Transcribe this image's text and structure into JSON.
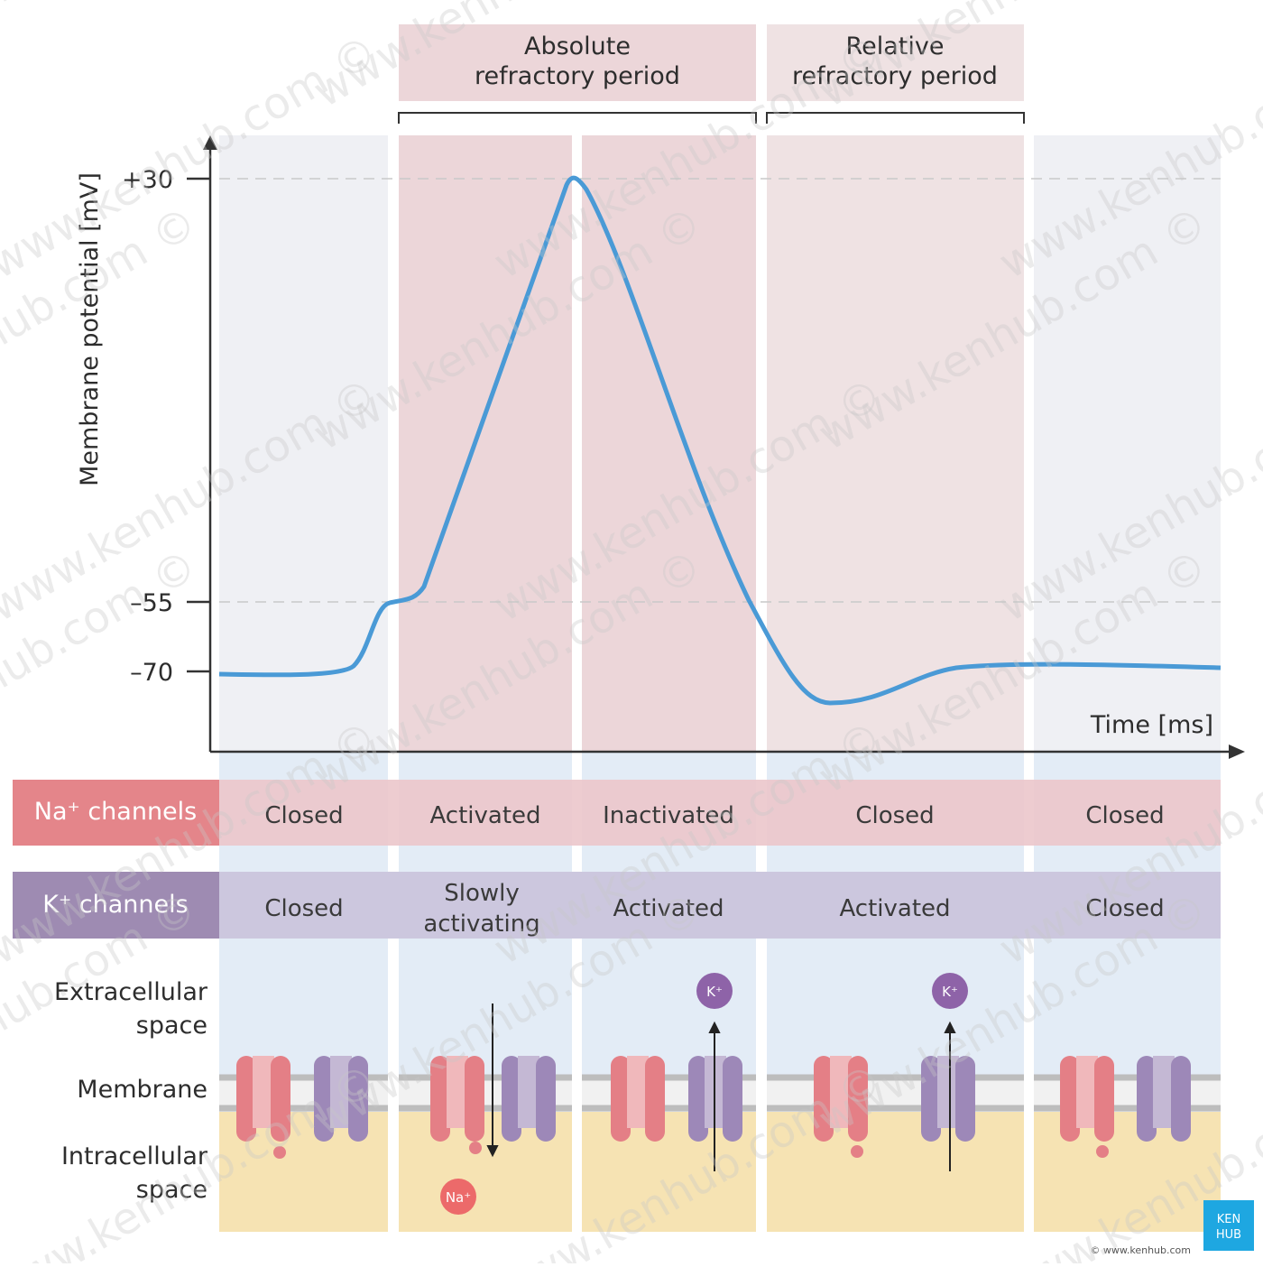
{
  "header": {
    "absolute": [
      "Absolute",
      "refractory period"
    ],
    "relative": [
      "Relative",
      "refractory period"
    ]
  },
  "axes": {
    "y_label": "Membrane potential [mV]",
    "x_label": "Time [ms]",
    "y_ticks": [
      "+30",
      "–55",
      "–70"
    ]
  },
  "rows": {
    "na": {
      "label": "Na⁺ channels",
      "cells": [
        "Closed",
        "Activated",
        "Inactivated",
        "Closed",
        "Closed"
      ]
    },
    "k": {
      "label": "K⁺ channels",
      "cells": [
        [
          "Closed"
        ],
        [
          "Slowly",
          "activating"
        ],
        [
          "Activated"
        ],
        [
          "Activated"
        ],
        [
          "Closed"
        ]
      ]
    }
  },
  "regions": {
    "extracellular": [
      "Extracellular",
      "space"
    ],
    "membrane": "Membrane",
    "intracellular": [
      "Intracellular",
      "space"
    ]
  },
  "ions": {
    "k1": "K⁺",
    "k2": "K⁺",
    "na": "Na⁺"
  },
  "footer": {
    "copyright": "© www.kenhub.com",
    "logo": [
      "KEN",
      "HUB"
    ]
  },
  "watermark": "www.kenhub.com ©"
}
